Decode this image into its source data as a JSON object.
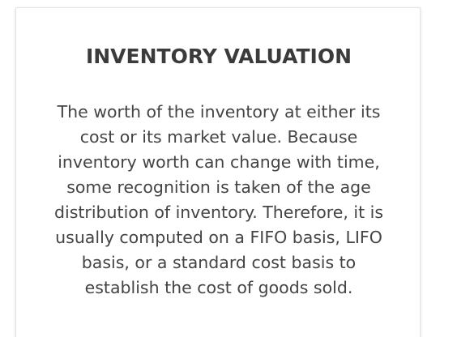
{
  "card": {
    "title": "INVENTORY VALUATION",
    "body": "The worth of the inventory at either its cost or its market value. Because inventory worth can change with time, some recognition is taken of the age distribution of inventory. Therefore, it is usually computed on a FIFO basis, LIFO basis, or a standard cost basis to establish the cost of goods sold."
  },
  "colors": {
    "title": "#3b3b3b",
    "body": "#444444",
    "card_border": "#e3e3e3",
    "background": "#ffffff"
  }
}
